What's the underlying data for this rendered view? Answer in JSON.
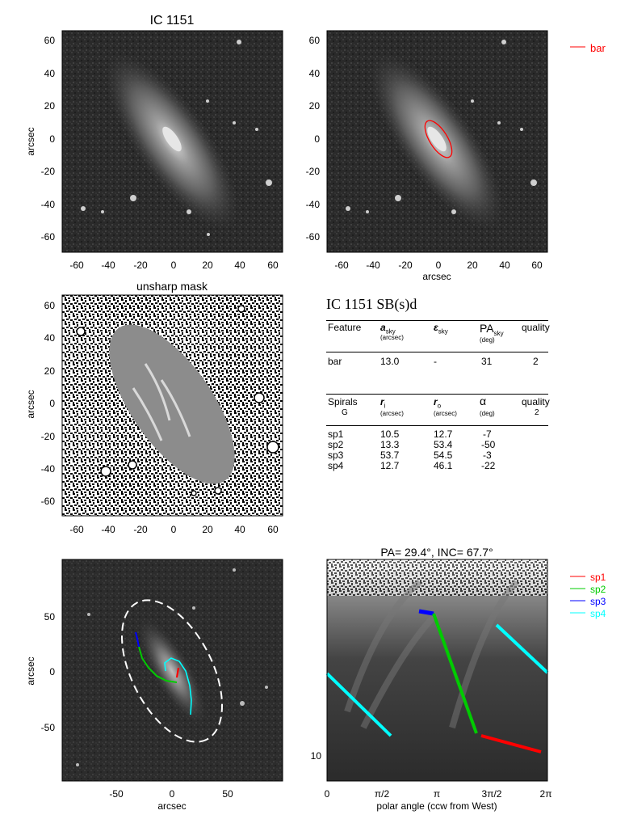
{
  "panel1": {
    "title": "IC 1151",
    "ylabel": "arcsec",
    "yticks": [
      "60",
      "40",
      "20",
      "0",
      "-20",
      "-40",
      "-60"
    ],
    "xticks": [
      "-60",
      "-40",
      "-20",
      "0",
      "20",
      "40",
      "60"
    ]
  },
  "panel2": {
    "xlabel": "arcsec",
    "yticks": [
      "60",
      "40",
      "20",
      "0",
      "-20",
      "-40",
      "-60"
    ],
    "xticks": [
      "-60",
      "-40",
      "-20",
      "0",
      "20",
      "40",
      "60"
    ],
    "legend": {
      "label": "bar",
      "color": "#ff0000"
    }
  },
  "panel3": {
    "title": "unsharp mask",
    "ylabel": "arcsec",
    "yticks": [
      "60",
      "40",
      "20",
      "0",
      "-20",
      "-40",
      "-60"
    ],
    "xticks": [
      "-60",
      "-40",
      "-20",
      "0",
      "20",
      "40",
      "60"
    ]
  },
  "table": {
    "title": "IC 1151  SB(s)d",
    "bar_header": {
      "feature": "Feature",
      "a_sky": "a",
      "a_sky_sub": "sky",
      "a_unit": "(arcsec)",
      "eps_sky": "ε",
      "eps_sub": "sky",
      "pa_sky": "PA",
      "pa_sub": "sky",
      "pa_unit": "(deg)",
      "quality": "quality"
    },
    "bar_row": {
      "feature": "bar",
      "a": "13.0",
      "eps": "-",
      "pa": "31",
      "quality": "2"
    },
    "spiral_header": {
      "spirals": "Spirals",
      "spirals_sub": "G",
      "ri": "r",
      "ri_sub": "i",
      "ri_unit": "(arcsec)",
      "ro": "r",
      "ro_sub": "o",
      "ro_unit": "(arcsec)",
      "alpha": "α",
      "alpha_unit": "(deg)",
      "quality": "quality",
      "quality_val": "2"
    },
    "spiral_rows": [
      {
        "name": "sp1",
        "ri": "10.5",
        "ro": "12.7",
        "alpha": "-7"
      },
      {
        "name": "sp2",
        "ri": "13.3",
        "ro": "53.4",
        "alpha": "-50"
      },
      {
        "name": "sp3",
        "ri": "53.7",
        "ro": "54.5",
        "alpha": "-3"
      },
      {
        "name": "sp4",
        "ri": "12.7",
        "ro": "46.1",
        "alpha": "-22"
      }
    ]
  },
  "panel5": {
    "ylabel": "arcsec",
    "xlabel": "arcsec",
    "yticks": [
      "50",
      "0",
      "-50"
    ],
    "xticks": [
      "-50",
      "0",
      "50"
    ]
  },
  "panel6": {
    "title": "PA= 29.4°, INC= 67.7°",
    "xlabel": "polar angle (ccw from West)",
    "xticks": [
      "0",
      "π/2",
      "π",
      "3π/2",
      "2π"
    ],
    "ytick": "10",
    "legend": [
      {
        "label": "sp1",
        "color": "#ff0000"
      },
      {
        "label": "sp2",
        "color": "#00cc00"
      },
      {
        "label": "sp3",
        "color": "#0000ff"
      },
      {
        "label": "sp4",
        "color": "#00ffff"
      }
    ]
  }
}
